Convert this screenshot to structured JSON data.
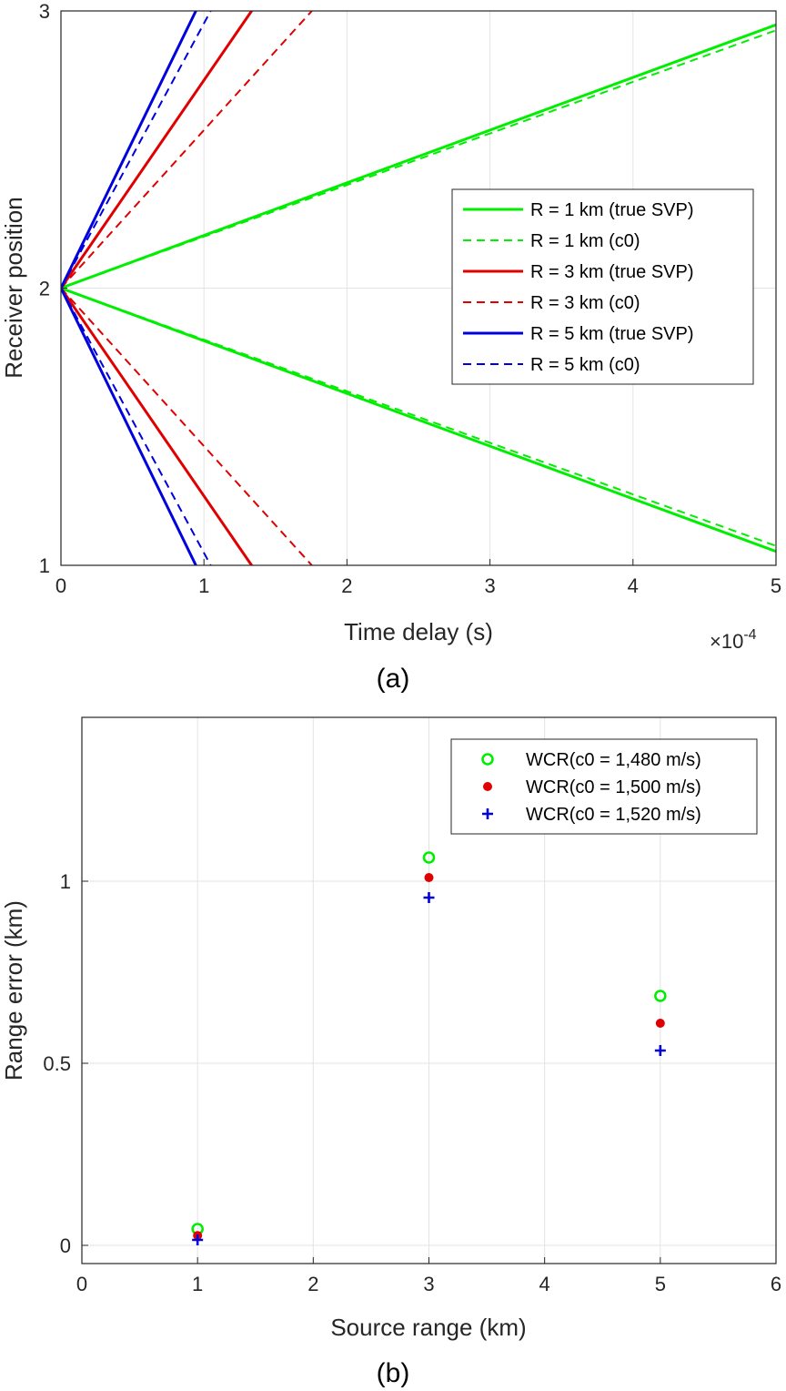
{
  "chart_data": [
    {
      "type": "line",
      "panel_label": "(a)",
      "xlabel": "Time delay (s)",
      "x_multiplier_prefix": "×10",
      "x_multiplier_exponent": "-4",
      "ylabel": "Receiver position",
      "xlim": [
        0,
        5
      ],
      "ylim": [
        1,
        3
      ],
      "xticks": [
        "0",
        "1",
        "2",
        "3",
        "4",
        "5"
      ],
      "yticks": [
        "1",
        "2",
        "3"
      ],
      "grid": true,
      "legend_position": "right",
      "series": [
        {
          "name": "R = 1 km (true SVP)",
          "color": "#00ee00",
          "style": "solid",
          "slope": 0.19
        },
        {
          "name": "R = 1 km (c0)",
          "color": "#00ee00",
          "style": "dashed",
          "slope": 0.186
        },
        {
          "name": "R = 3 km (true SVP)",
          "color": "#e00000",
          "style": "solid",
          "slope": 0.75
        },
        {
          "name": "R = 3 km (c0)",
          "color": "#e00000",
          "style": "dashed",
          "slope": 0.57
        },
        {
          "name": "R = 5 km (true SVP)",
          "color": "#0000dd",
          "style": "solid",
          "slope": 1.06
        },
        {
          "name": "R = 5 km (c0)",
          "color": "#0000dd",
          "style": "dashed",
          "slope": 0.955
        }
      ]
    },
    {
      "type": "scatter",
      "panel_label": "(b)",
      "xlabel": "Source range (km)",
      "ylabel": "Range error (km)",
      "xlim": [
        0,
        6
      ],
      "ylim": [
        -0.05,
        1.45
      ],
      "xticks": [
        "0",
        "1",
        "2",
        "3",
        "4",
        "5",
        "6"
      ],
      "yticks": [
        "0",
        "0.5",
        "1"
      ],
      "grid": true,
      "legend_position": "top-right",
      "x": [
        1,
        3,
        5
      ],
      "series": [
        {
          "name": "WCR(c0 = 1,480 m/s)",
          "color": "#00ee00",
          "marker": "circle",
          "values": [
            0.045,
            1.065,
            0.685
          ]
        },
        {
          "name": "WCR(c0 = 1,500 m/s)",
          "color": "#e00000",
          "marker": "dot",
          "values": [
            0.027,
            1.01,
            0.61
          ]
        },
        {
          "name": "WCR(c0 = 1,520 m/s)",
          "color": "#0000dd",
          "marker": "plus",
          "values": [
            0.015,
            0.955,
            0.535
          ]
        }
      ]
    }
  ]
}
